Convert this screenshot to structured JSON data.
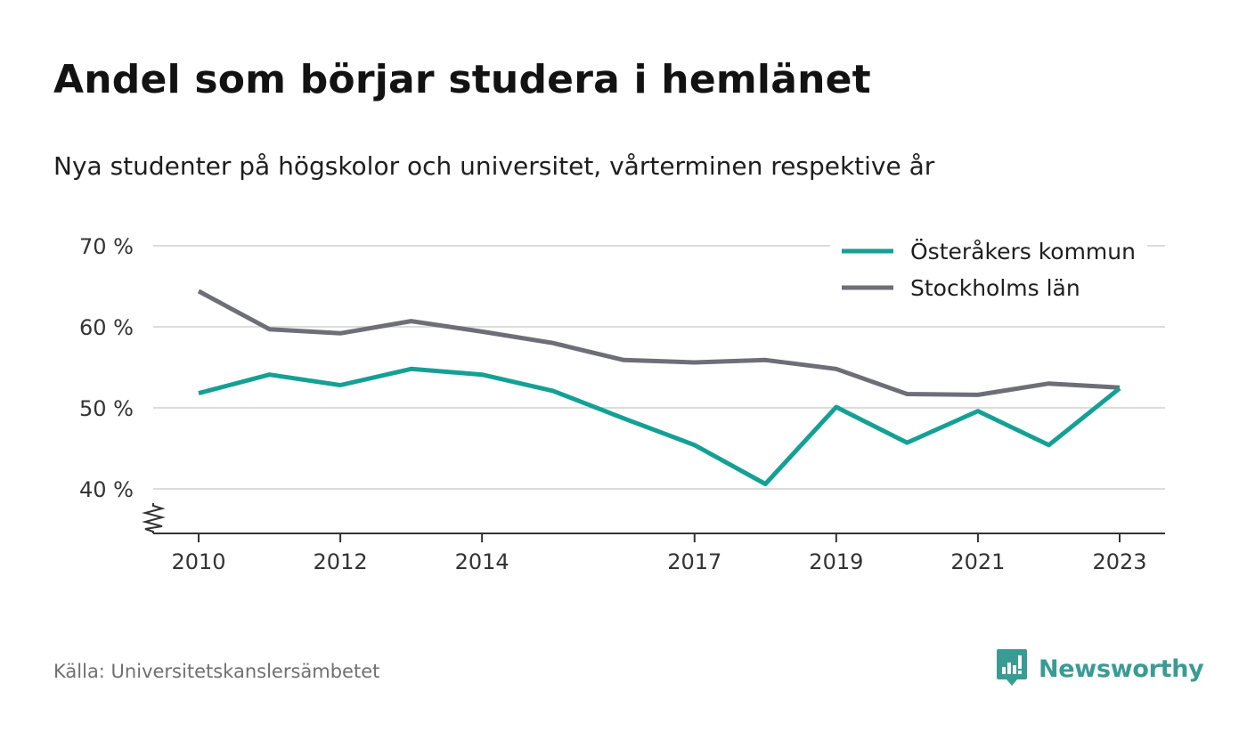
{
  "header": {
    "title": "Andel som börjar studera i hemlänet",
    "subtitle": "Nya studenter på högskolor och universitet, vårterminen respektive år"
  },
  "footer": {
    "source": "Källa: Universitetskanslersämbetet",
    "brand": "Newsworthy",
    "brand_icon": "newsworthy-bar-chart-logo"
  },
  "colors": {
    "osteraker": "#14a095",
    "stockholm": "#6e6e78",
    "grid": "#dcdcdc",
    "axis": "#333333",
    "brand": "#3a9b94"
  },
  "chart_data": {
    "type": "line",
    "title": "Andel som börjar studera i hemlänet",
    "subtitle": "Nya studenter på högskolor och universitet, vårterminen respektive år",
    "x": [
      2010,
      2011,
      2012,
      2013,
      2014,
      2015,
      2016,
      2017,
      2018,
      2019,
      2020,
      2021,
      2022,
      2023
    ],
    "x_ticks": [
      "2010",
      "2012",
      "2014",
      "2017",
      "2019",
      "2021",
      "2023"
    ],
    "y_ticks": [
      "40 %",
      "50 %",
      "60 %",
      "70 %"
    ],
    "y_tick_values": [
      40,
      50,
      60,
      70
    ],
    "ylim": [
      34.5,
      70
    ],
    "y_axis_break": true,
    "grid": true,
    "legend_position": "top-right",
    "series": [
      {
        "name": "Österåkers kommun",
        "color": "#14a095",
        "values": [
          51.8,
          54.1,
          52.8,
          54.8,
          54.1,
          52.1,
          48.7,
          45.4,
          40.6,
          50.1,
          45.7,
          49.6,
          45.4,
          52.4
        ]
      },
      {
        "name": "Stockholms län",
        "color": "#6e6e78",
        "values": [
          64.4,
          59.7,
          59.2,
          60.7,
          59.4,
          58.0,
          55.9,
          55.6,
          55.9,
          54.8,
          51.7,
          51.6,
          53.0,
          52.5
        ]
      }
    ]
  }
}
